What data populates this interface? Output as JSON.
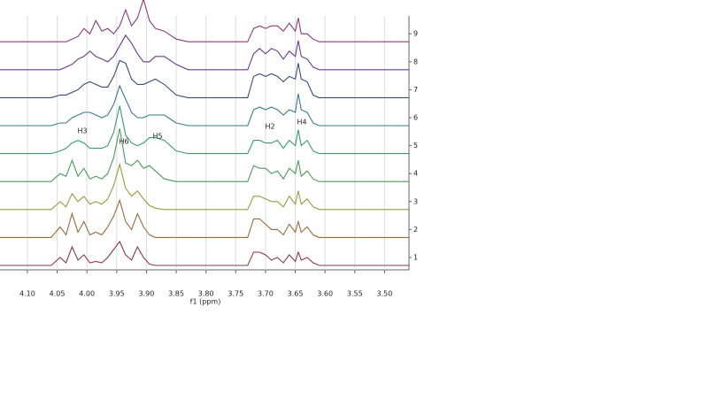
{
  "chart_data": {
    "type": "stacked-line",
    "x_label": "f1 (ppm)",
    "xlim": [
      4.146,
      3.459
    ],
    "xticks": [
      {
        "value": 4.1,
        "label": "4.10"
      },
      {
        "value": 4.05,
        "label": "4.05"
      },
      {
        "value": 4.0,
        "label": "4.00"
      },
      {
        "value": 3.95,
        "label": "3.95"
      },
      {
        "value": 3.9,
        "label": "3.90"
      },
      {
        "value": 3.85,
        "label": "3.85"
      },
      {
        "value": 3.8,
        "label": "3.80"
      },
      {
        "value": 3.75,
        "label": "3.75"
      },
      {
        "value": 3.7,
        "label": "3.70"
      },
      {
        "value": 3.65,
        "label": "3.65"
      },
      {
        "value": 3.6,
        "label": "3.60"
      },
      {
        "value": 3.55,
        "label": "3.55"
      },
      {
        "value": 3.5,
        "label": "3.50"
      }
    ],
    "grid": true,
    "annotations": [
      "H3",
      "H6",
      "H5",
      "H2",
      "H4"
    ],
    "x": [
      4.146,
      4.06,
      4.045,
      4.035,
      4.025,
      4.015,
      4.005,
      3.995,
      3.985,
      3.975,
      3.965,
      3.955,
      3.945,
      3.935,
      3.925,
      3.915,
      3.905,
      3.895,
      3.885,
      3.87,
      3.85,
      3.83,
      3.8,
      3.73,
      3.72,
      3.71,
      3.7,
      3.69,
      3.68,
      3.67,
      3.66,
      3.65,
      3.645,
      3.64,
      3.63,
      3.62,
      3.61,
      3.59,
      3.459
    ],
    "series": [
      {
        "name": "1",
        "color": "#8a3a4a",
        "values": [
          0,
          0,
          0.3,
          0.1,
          0.7,
          0.2,
          0.4,
          0.1,
          0.15,
          0.1,
          0.3,
          0.6,
          0.9,
          0.4,
          0.2,
          0.7,
          0.3,
          0.05,
          0,
          0,
          0,
          0,
          0,
          0,
          0.5,
          0.5,
          0.4,
          0.2,
          0.3,
          0.1,
          0.4,
          0.15,
          0.5,
          0.2,
          0.3,
          0.1,
          0,
          0,
          0
        ]
      },
      {
        "name": "2",
        "color": "#9a6a3a",
        "values": [
          0,
          0,
          0.4,
          0.1,
          0.9,
          0.2,
          0.6,
          0.1,
          0.2,
          0.1,
          0.4,
          0.8,
          1.4,
          0.6,
          0.3,
          0.9,
          0.4,
          0.1,
          0,
          0,
          0,
          0,
          0,
          0,
          0.7,
          0.7,
          0.5,
          0.3,
          0.3,
          0.1,
          0.5,
          0.2,
          0.6,
          0.2,
          0.4,
          0.1,
          0,
          0,
          0
        ]
      },
      {
        "name": "3",
        "color": "#9a9a40",
        "values": [
          0,
          0,
          0.3,
          0.1,
          0.6,
          0.3,
          0.5,
          0.2,
          0.3,
          0.2,
          0.4,
          0.9,
          1.7,
          0.8,
          0.5,
          0.7,
          0.4,
          0.15,
          0.05,
          0,
          0,
          0,
          0,
          0,
          0.5,
          0.5,
          0.4,
          0.3,
          0.3,
          0.1,
          0.5,
          0.2,
          0.7,
          0.2,
          0.4,
          0.1,
          0,
          0,
          0
        ]
      },
      {
        "name": "4",
        "color": "#4a9a5a",
        "values": [
          0,
          0,
          0.3,
          0.2,
          0.8,
          0.2,
          0.5,
          0.1,
          0.2,
          0.1,
          0.3,
          0.9,
          2.0,
          0.7,
          0.6,
          0.8,
          0.5,
          0.6,
          0.4,
          0.1,
          0,
          0,
          0,
          0,
          0.6,
          0.5,
          0.5,
          0.3,
          0.4,
          0.1,
          0.5,
          0.3,
          0.8,
          0.2,
          0.4,
          0.1,
          0,
          0,
          0
        ]
      },
      {
        "name": "5",
        "color": "#3a9a6a",
        "values": [
          0,
          0,
          0.1,
          0.2,
          0.4,
          0.5,
          0.4,
          0.2,
          0.2,
          0.2,
          0.3,
          0.8,
          1.8,
          0.7,
          0.4,
          0.3,
          0.4,
          0.6,
          0.6,
          0.5,
          0.1,
          0,
          0,
          0,
          0.5,
          0.5,
          0.4,
          0.4,
          0.5,
          0.2,
          0.5,
          0.3,
          0.9,
          0.3,
          0.5,
          0.1,
          0,
          0,
          0
        ]
      },
      {
        "name": "6",
        "color": "#3a7a8a",
        "values": [
          0,
          0,
          0.1,
          0.1,
          0.3,
          0.4,
          0.5,
          0.5,
          0.4,
          0.3,
          0.4,
          0.8,
          1.5,
          1.0,
          0.5,
          0.3,
          0.3,
          0.4,
          0.4,
          0.4,
          0.1,
          0,
          0,
          0,
          0.6,
          0.7,
          0.6,
          0.7,
          0.6,
          0.4,
          0.6,
          0.5,
          1.2,
          0.6,
          0.5,
          0.1,
          0,
          0,
          0
        ]
      },
      {
        "name": "7",
        "color": "#3a4a7a",
        "values": [
          0,
          0,
          0.1,
          0.1,
          0.2,
          0.3,
          0.5,
          0.6,
          0.5,
          0.4,
          0.4,
          0.8,
          1.4,
          1.3,
          0.7,
          0.5,
          0.5,
          0.6,
          0.7,
          0.5,
          0.1,
          0,
          0,
          0,
          0.8,
          0.9,
          0.8,
          0.9,
          0.8,
          0.6,
          0.8,
          0.7,
          1.3,
          0.7,
          0.6,
          0.1,
          0,
          0,
          0
        ]
      },
      {
        "name": "8",
        "color": "#6a3a8a",
        "values": [
          0,
          0,
          0,
          0.1,
          0.2,
          0.4,
          0.5,
          0.7,
          0.5,
          0.4,
          0.3,
          0.5,
          0.9,
          1.3,
          1.0,
          0.6,
          0.3,
          0.3,
          0.5,
          0.5,
          0.2,
          0,
          0,
          0,
          0.6,
          0.8,
          0.6,
          0.8,
          0.7,
          0.4,
          0.7,
          0.5,
          1.1,
          0.5,
          0.4,
          0.1,
          0,
          0,
          0
        ]
      },
      {
        "name": "9",
        "color": "#8a3a7a",
        "values": [
          0,
          0,
          0,
          0,
          0.1,
          0.2,
          0.5,
          0.3,
          0.8,
          0.4,
          0.5,
          0.3,
          0.6,
          1.2,
          0.6,
          0.9,
          1.6,
          0.8,
          0.5,
          0.4,
          0.1,
          0,
          0,
          0,
          0.5,
          0.6,
          0.5,
          0.6,
          0.6,
          0.4,
          0.7,
          0.4,
          0.9,
          0.3,
          0.3,
          0.1,
          0,
          0,
          0
        ]
      }
    ]
  }
}
